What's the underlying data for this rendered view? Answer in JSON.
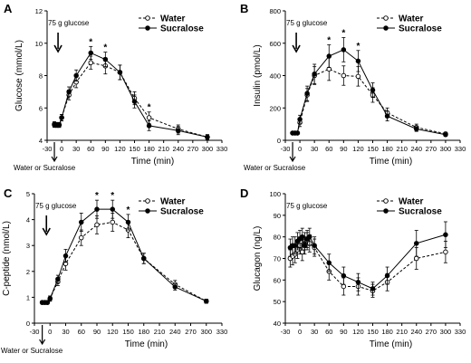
{
  "chart_data": [
    {
      "panel": "A",
      "type": "line",
      "ylabel": "Glucose (mmol/L)",
      "xlabel": "Time (min)",
      "ylim": [
        4,
        12
      ],
      "yticks": [
        4,
        6,
        8,
        10,
        12
      ],
      "xlim": [
        -30,
        330
      ],
      "xticks": [
        -30,
        0,
        30,
        60,
        90,
        120,
        150,
        180,
        210,
        240,
        270,
        300,
        330
      ],
      "annotation": "75 g glucose",
      "annotation_x": 0,
      "below_label": "Water or Sucralose",
      "series": [
        {
          "name": "Water",
          "marker": "open",
          "dashed": true,
          "x": [
            -15,
            -10,
            -5,
            0,
            15,
            30,
            60,
            90,
            120,
            150,
            180,
            240,
            300
          ],
          "y": [
            5.0,
            4.95,
            4.95,
            5.4,
            6.8,
            7.6,
            8.8,
            8.6,
            8.2,
            6.6,
            5.4,
            4.7,
            4.2
          ],
          "err": [
            0.15,
            0.15,
            0.15,
            0.2,
            0.3,
            0.35,
            0.4,
            0.5,
            0.45,
            0.4,
            0.35,
            0.25,
            0.15
          ]
        },
        {
          "name": "Sucralose",
          "marker": "filled",
          "dashed": false,
          "x": [
            -15,
            -10,
            -5,
            0,
            15,
            30,
            60,
            90,
            120,
            150,
            180,
            240,
            300
          ],
          "y": [
            4.95,
            4.95,
            4.95,
            5.4,
            7.0,
            8.0,
            9.4,
            9.0,
            8.2,
            6.4,
            4.9,
            4.6,
            4.2
          ],
          "err": [
            0.15,
            0.15,
            0.15,
            0.2,
            0.3,
            0.35,
            0.4,
            0.45,
            0.45,
            0.4,
            0.3,
            0.25,
            0.15
          ]
        }
      ],
      "stars": [
        60,
        90,
        180
      ]
    },
    {
      "panel": "B",
      "type": "line",
      "ylabel": "Insulin (pmol/L)",
      "xlabel": "Time (min)",
      "ylim": [
        0,
        800
      ],
      "yticks": [
        0,
        200,
        400,
        600,
        800
      ],
      "xlim": [
        -30,
        330
      ],
      "xticks": [
        -30,
        0,
        30,
        60,
        90,
        120,
        150,
        180,
        210,
        240,
        270,
        300,
        330
      ],
      "annotation": "75 g glucose",
      "annotation_x": 0,
      "below_label": "Water or Sucralose",
      "series": [
        {
          "name": "Water",
          "marker": "open",
          "dashed": true,
          "x": [
            -15,
            -10,
            -5,
            0,
            15,
            30,
            60,
            90,
            120,
            150,
            180,
            240,
            300
          ],
          "y": [
            45,
            45,
            45,
            110,
            280,
            400,
            440,
            400,
            395,
            280,
            170,
            80,
            40
          ],
          "err": [
            8,
            8,
            8,
            25,
            40,
            55,
            70,
            60,
            60,
            45,
            30,
            20,
            10
          ]
        },
        {
          "name": "Sucralose",
          "marker": "filled",
          "dashed": false,
          "x": [
            -15,
            -10,
            -5,
            0,
            15,
            30,
            60,
            90,
            120,
            150,
            180,
            240,
            300
          ],
          "y": [
            45,
            45,
            45,
            130,
            290,
            410,
            520,
            560,
            490,
            310,
            150,
            70,
            35
          ],
          "err": [
            8,
            8,
            8,
            25,
            45,
            60,
            70,
            75,
            65,
            45,
            30,
            15,
            10
          ]
        }
      ],
      "stars": [
        60,
        90,
        120
      ]
    },
    {
      "panel": "C",
      "type": "line",
      "ylabel": "C-peptide (nmol/L)",
      "xlabel": "Time (min)",
      "ylim": [
        0,
        5
      ],
      "yticks": [
        0,
        1,
        2,
        3,
        4,
        5
      ],
      "xlim": [
        -30,
        330
      ],
      "xticks": [
        -30,
        0,
        30,
        60,
        90,
        120,
        150,
        180,
        210,
        240,
        270,
        300,
        330
      ],
      "annotation": "75 g glucose",
      "annotation_x": 0,
      "below_label": "Water or Sucralose",
      "series": [
        {
          "name": "Water",
          "marker": "open",
          "dashed": true,
          "x": [
            -15,
            -10,
            -5,
            0,
            15,
            30,
            60,
            90,
            120,
            150,
            180,
            240,
            300
          ],
          "y": [
            0.8,
            0.8,
            0.8,
            0.95,
            1.6,
            2.3,
            3.3,
            3.8,
            3.9,
            3.6,
            2.5,
            1.5,
            0.85
          ],
          "err": [
            0.05,
            0.05,
            0.05,
            0.1,
            0.15,
            0.25,
            0.3,
            0.35,
            0.35,
            0.3,
            0.2,
            0.15,
            0.08
          ]
        },
        {
          "name": "Sucralose",
          "marker": "filled",
          "dashed": false,
          "x": [
            -15,
            -10,
            -5,
            0,
            15,
            30,
            60,
            90,
            120,
            150,
            180,
            240,
            300
          ],
          "y": [
            0.8,
            0.8,
            0.8,
            0.95,
            1.7,
            2.6,
            3.9,
            4.4,
            4.4,
            3.9,
            2.5,
            1.4,
            0.85
          ],
          "err": [
            0.05,
            0.05,
            0.05,
            0.1,
            0.15,
            0.25,
            0.35,
            0.35,
            0.35,
            0.3,
            0.2,
            0.12,
            0.08
          ]
        }
      ],
      "stars": [
        90,
        120,
        150
      ]
    },
    {
      "panel": "D",
      "type": "line",
      "ylabel": "Glucagon (ng/L)",
      "xlabel": "Time (min)",
      "ylim": [
        40,
        100
      ],
      "yticks": [
        40,
        50,
        60,
        70,
        80,
        90,
        100
      ],
      "xlim": [
        -30,
        330
      ],
      "xticks": [
        -30,
        0,
        30,
        60,
        90,
        120,
        150,
        180,
        210,
        240,
        270,
        300,
        330
      ],
      "annotation": "75 g glucose",
      "annotation_x": 0,
      "below_label": "",
      "series": [
        {
          "name": "Water",
          "marker": "open",
          "dashed": true,
          "x": [
            -20,
            -15,
            -10,
            -5,
            0,
            5,
            10,
            15,
            20,
            30,
            60,
            90,
            120,
            150,
            180,
            240,
            300
          ],
          "y": [
            70,
            71,
            72,
            74,
            76,
            73,
            78,
            78,
            77,
            75,
            64,
            57,
            57,
            55,
            59,
            70,
            73
          ],
          "err": [
            4,
            4,
            4,
            4,
            4,
            4,
            4,
            4,
            4,
            4,
            4,
            4,
            4,
            3,
            4,
            5,
            5
          ]
        },
        {
          "name": "Sucralose",
          "marker": "filled",
          "dashed": false,
          "x": [
            -20,
            -15,
            -10,
            -5,
            0,
            5,
            10,
            15,
            20,
            30,
            60,
            90,
            120,
            150,
            180,
            240,
            300
          ],
          "y": [
            75,
            76,
            76,
            78,
            79,
            80,
            76,
            79,
            80,
            76,
            68,
            62,
            59,
            56,
            62,
            77,
            81
          ],
          "err": [
            4,
            4,
            4,
            4,
            4,
            4,
            4,
            4,
            4,
            4,
            4,
            4,
            4,
            3,
            4,
            6,
            6
          ]
        }
      ],
      "stars": []
    }
  ]
}
